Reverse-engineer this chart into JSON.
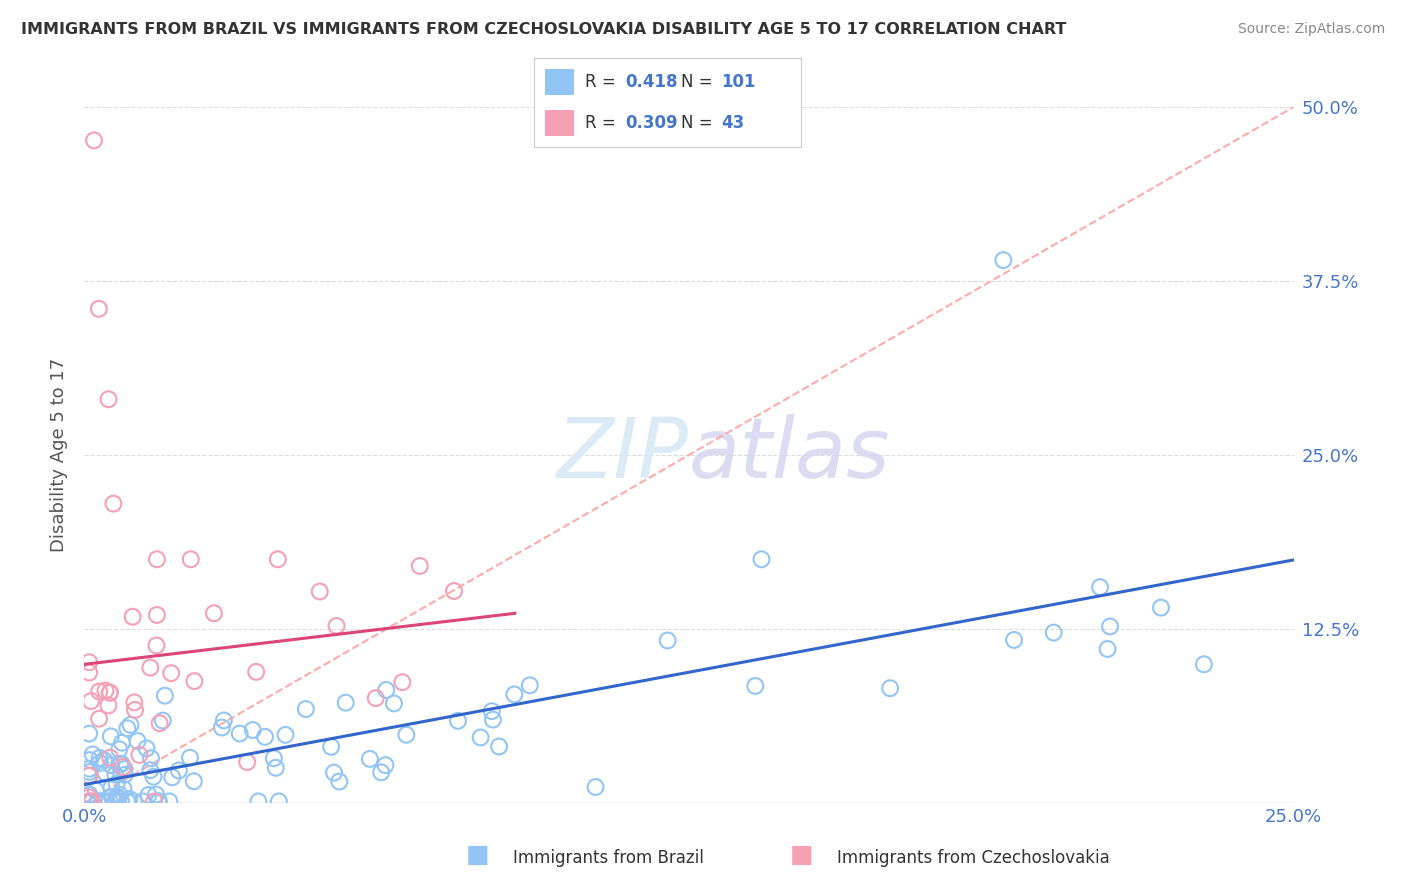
{
  "title": "IMMIGRANTS FROM BRAZIL VS IMMIGRANTS FROM CZECHOSLOVAKIA DISABILITY AGE 5 TO 17 CORRELATION CHART",
  "source": "Source: ZipAtlas.com",
  "ylabel": "Disability Age 5 to 17",
  "brazil_color": "#92C5F5",
  "czech_color": "#F5A0B5",
  "brazil_line_color": "#3366CC",
  "czech_line_color": "#DD4477",
  "dashed_line_color": "#FFAAAA",
  "watermark_color": "#D5E8F5",
  "watermark_color2": "#D5D5F0",
  "legend_R_brazil": "0.418",
  "legend_N_brazil": "101",
  "legend_R_czech": "0.309",
  "legend_N_czech": "43",
  "legend_label_brazil": "Immigrants from Brazil",
  "legend_label_czech": "Immigrants from Czechoslovakia",
  "xlim": [
    0.0,
    0.25
  ],
  "ylim": [
    0.0,
    0.5
  ],
  "yticks": [
    0.0,
    0.125,
    0.25,
    0.375,
    0.5
  ],
  "ytick_labels": [
    "",
    "12.5%",
    "25.0%",
    "37.5%",
    "50.0%"
  ],
  "background_color": "#FFFFFF",
  "grid_color": "#DDDDDD",
  "accent_color": "#4477CC",
  "title_color": "#333333",
  "label_color": "#555555"
}
